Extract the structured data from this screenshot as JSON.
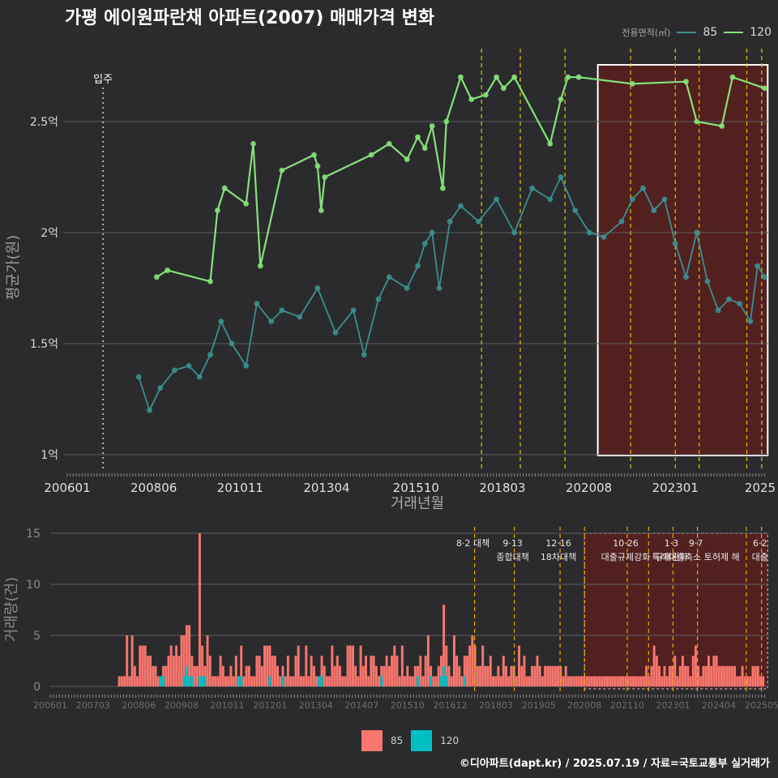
{
  "title": "가평 에이원파란채 아파트(2007) 매매가격 변화",
  "legend_top": {
    "title": "전용면적(㎡)",
    "items": [
      "85",
      "120"
    ]
  },
  "legend_bottom": {
    "items": [
      "85",
      "120"
    ]
  },
  "footer": "©디아파트(dapt.kr) / 2025.07.19 / 자료=국토교통부 실거래가",
  "colors": {
    "s85": "#3b8f8f",
    "s120": "#86e07a",
    "bar85": "#f8766d",
    "bar120": "#00bfc4",
    "policy": "#e6c200",
    "box": "#5a1f1f"
  },
  "chart_data": [
    {
      "type": "line",
      "ylabel": "평균가(원)",
      "xlabel": "거래년월",
      "x_ticks": [
        "200601",
        "200806",
        "201011",
        "201304",
        "201510",
        "201803",
        "202008",
        "202301",
        "2025"
      ],
      "y_ticks": [
        "1억",
        "1.5억",
        "2억",
        "2.5억"
      ],
      "ylim": [
        0.9,
        2.85
      ],
      "annotations": {
        "move_in": {
          "label": "입주",
          "date": "2007.01"
        }
      },
      "policy_lines": [
        "2017.08",
        "2018.09",
        "2019.12",
        "2021.10",
        "2023.01",
        "2023.09",
        "2025.01",
        "2025.06"
      ],
      "highlight_range": [
        "2020.11",
        "2025.08"
      ],
      "series": [
        {
          "name": "120",
          "points": [
            [
              2008.5,
              1.8
            ],
            [
              2008.8,
              1.83
            ],
            [
              2010.0,
              1.78
            ],
            [
              2010.2,
              2.1
            ],
            [
              2010.4,
              2.2
            ],
            [
              2011.0,
              2.13
            ],
            [
              2011.2,
              2.4
            ],
            [
              2011.4,
              1.85
            ],
            [
              2012.0,
              2.28
            ],
            [
              2012.9,
              2.35
            ],
            [
              2013.0,
              2.3
            ],
            [
              2013.1,
              2.1
            ],
            [
              2013.2,
              2.25
            ],
            [
              2014.5,
              2.35
            ],
            [
              2015.0,
              2.4
            ],
            [
              2015.5,
              2.33
            ],
            [
              2015.8,
              2.43
            ],
            [
              2016.0,
              2.38
            ],
            [
              2016.2,
              2.48
            ],
            [
              2016.5,
              2.2
            ],
            [
              2016.6,
              2.5
            ],
            [
              2017.0,
              2.7
            ],
            [
              2017.3,
              2.6
            ],
            [
              2017.7,
              2.62
            ],
            [
              2018.0,
              2.7
            ],
            [
              2018.2,
              2.65
            ],
            [
              2018.5,
              2.7
            ],
            [
              2019.5,
              2.4
            ],
            [
              2019.8,
              2.6
            ],
            [
              2020.0,
              2.7
            ],
            [
              2020.3,
              2.7
            ],
            [
              2021.8,
              2.67
            ],
            [
              2023.3,
              2.68
            ],
            [
              2023.6,
              2.5
            ],
            [
              2024.3,
              2.48
            ],
            [
              2024.6,
              2.7
            ],
            [
              2025.5,
              2.65
            ]
          ]
        },
        {
          "name": "85",
          "points": [
            [
              2008.0,
              1.35
            ],
            [
              2008.3,
              1.2
            ],
            [
              2008.6,
              1.3
            ],
            [
              2009.0,
              1.38
            ],
            [
              2009.4,
              1.4
            ],
            [
              2009.7,
              1.35
            ],
            [
              2010.0,
              1.45
            ],
            [
              2010.3,
              1.6
            ],
            [
              2010.6,
              1.5
            ],
            [
              2011.0,
              1.4
            ],
            [
              2011.3,
              1.68
            ],
            [
              2011.7,
              1.6
            ],
            [
              2012.0,
              1.65
            ],
            [
              2012.5,
              1.62
            ],
            [
              2013.0,
              1.75
            ],
            [
              2013.5,
              1.55
            ],
            [
              2014.0,
              1.65
            ],
            [
              2014.3,
              1.45
            ],
            [
              2014.7,
              1.7
            ],
            [
              2015.0,
              1.8
            ],
            [
              2015.5,
              1.75
            ],
            [
              2015.8,
              1.85
            ],
            [
              2016.0,
              1.95
            ],
            [
              2016.2,
              2.0
            ],
            [
              2016.4,
              1.75
            ],
            [
              2016.7,
              2.05
            ],
            [
              2017.0,
              2.12
            ],
            [
              2017.5,
              2.05
            ],
            [
              2018.0,
              2.15
            ],
            [
              2018.5,
              2.0
            ],
            [
              2019.0,
              2.2
            ],
            [
              2019.5,
              2.15
            ],
            [
              2019.8,
              2.25
            ],
            [
              2020.2,
              2.1
            ],
            [
              2020.6,
              2.0
            ],
            [
              2021.0,
              1.98
            ],
            [
              2021.5,
              2.05
            ],
            [
              2021.8,
              2.15
            ],
            [
              2022.1,
              2.2
            ],
            [
              2022.4,
              2.1
            ],
            [
              2022.7,
              2.15
            ],
            [
              2023.0,
              1.95
            ],
            [
              2023.3,
              1.8
            ],
            [
              2023.6,
              2.0
            ],
            [
              2023.9,
              1.78
            ],
            [
              2024.2,
              1.65
            ],
            [
              2024.5,
              1.7
            ],
            [
              2024.8,
              1.68
            ],
            [
              2025.1,
              1.6
            ],
            [
              2025.3,
              1.85
            ],
            [
              2025.5,
              1.8
            ]
          ]
        }
      ]
    },
    {
      "type": "bar",
      "ylabel": "거래량(건)",
      "y_ticks": [
        "0",
        "5",
        "10",
        "15"
      ],
      "ylim": [
        0,
        15.5
      ],
      "x_ticks": [
        "200601",
        "200703",
        "200806",
        "200908",
        "201011",
        "201201",
        "201304",
        "201407",
        "201510",
        "201612",
        "201803",
        "201905",
        "202008",
        "202110",
        "202301",
        "202404",
        "202505"
      ],
      "policy_lines": [
        "2017.08",
        "2018.09",
        "2019.12",
        "2020.08",
        "2021.10",
        "2022.05",
        "2023.01",
        "2023.09",
        "2025.01",
        "2025.06"
      ],
      "policy_labels": [
        {
          "date": "2017.08",
          "top": "8·2 대책",
          "bottom": ""
        },
        {
          "date": "2018.09",
          "top": "9·13",
          "bottom": "종합대책"
        },
        {
          "date": "2019.12",
          "top": "12·16",
          "bottom": "18차대책"
        },
        {
          "date": "2021.10",
          "top": "10·26",
          "bottom": "대출규제강화"
        },
        {
          "date": "2023.01",
          "top": "1·3",
          "bottom": "규제완화"
        },
        {
          "date": "2023.09",
          "top": "9·7",
          "bottom": "특례대출축소 토허제 해"
        },
        {
          "date": "2025.06",
          "top": "6·2",
          "bottom": "대출"
        }
      ],
      "highlight_range": [
        "2020.08",
        "2025.08"
      ],
      "series": [
        {
          "name": "85",
          "values": [
            1,
            1,
            1,
            5,
            1,
            5,
            2,
            1,
            4,
            4,
            4,
            3,
            3,
            2,
            2,
            1,
            1,
            2,
            2,
            3,
            4,
            3,
            4,
            3,
            5,
            5,
            6,
            6,
            3,
            2,
            2,
            15,
            4,
            2,
            5,
            3,
            1,
            1,
            1,
            3,
            2,
            1,
            1,
            2,
            1,
            3,
            1,
            4,
            1,
            2,
            2,
            1,
            1,
            3,
            3,
            2,
            4,
            4,
            4,
            3,
            3,
            2,
            1,
            2,
            1,
            3,
            1,
            1,
            3,
            4,
            1,
            1,
            4,
            1,
            3,
            2,
            1,
            1,
            3,
            2,
            1,
            1,
            4,
            2,
            3,
            2,
            1,
            1,
            4,
            4,
            4,
            2,
            1,
            4,
            2,
            3,
            1,
            3,
            3,
            2,
            1,
            2,
            2,
            3,
            2,
            3,
            4,
            3,
            1,
            4,
            1,
            2,
            1,
            1,
            2,
            2,
            3,
            1,
            3,
            5,
            2,
            1,
            1,
            2,
            3,
            8,
            4,
            2,
            1,
            5,
            3,
            2,
            1,
            3,
            3,
            4,
            5,
            4,
            2,
            2,
            4,
            2,
            2,
            3,
            1,
            1,
            2,
            1,
            3,
            2,
            1,
            2,
            2,
            1,
            4,
            2,
            3,
            1,
            1,
            2,
            2,
            3,
            2,
            1,
            2,
            2,
            2,
            2,
            2,
            2,
            2,
            1,
            2,
            1,
            1,
            1,
            1,
            1,
            1,
            1,
            1,
            1,
            1,
            1,
            1,
            1,
            1,
            1,
            1,
            1,
            1,
            1,
            1,
            1,
            1,
            1,
            1,
            1,
            1,
            1,
            1,
            1,
            1,
            2,
            1,
            2,
            4,
            3,
            2,
            1,
            2,
            1,
            2,
            2,
            3,
            1,
            2,
            3,
            2,
            2,
            1,
            3,
            4,
            2,
            1,
            2,
            2,
            3,
            2,
            3,
            3,
            2,
            2,
            2,
            2,
            2,
            2,
            2,
            1,
            1,
            2,
            1,
            1,
            1,
            2,
            2,
            2,
            1,
            1
          ]
        },
        {
          "name": "120",
          "values": [
            0,
            0,
            0,
            0,
            0,
            0,
            0,
            0,
            0,
            0,
            0,
            0,
            0,
            0,
            0,
            0,
            1,
            1,
            0,
            0,
            0,
            0,
            0,
            0,
            0,
            1,
            2,
            1,
            1,
            0,
            0,
            1,
            1,
            1,
            0,
            0,
            0,
            0,
            0,
            0,
            0,
            0,
            0,
            0,
            0,
            0,
            1,
            1,
            0,
            0,
            0,
            0,
            0,
            0,
            0,
            0,
            0,
            0,
            1,
            0,
            0,
            0,
            0,
            1,
            0,
            0,
            0,
            0,
            0,
            0,
            0,
            0,
            0,
            0,
            0,
            0,
            0,
            1,
            1,
            0,
            0,
            0,
            0,
            0,
            0,
            0,
            0,
            0,
            0,
            0,
            0,
            0,
            0,
            0,
            0,
            0,
            0,
            0,
            0,
            0,
            0,
            1,
            0,
            0,
            0,
            0,
            0,
            0,
            0,
            0,
            0,
            0,
            0,
            0,
            0,
            1,
            0,
            0,
            0,
            0,
            1,
            0,
            0,
            0,
            1,
            2,
            1,
            0,
            0,
            0,
            0,
            0,
            0,
            1,
            0,
            0,
            0,
            0,
            0,
            0,
            0,
            0,
            0,
            0,
            0,
            0,
            0,
            0,
            0,
            0,
            0,
            0,
            0,
            0,
            0,
            0,
            0,
            0,
            0,
            0,
            0,
            0,
            0,
            0,
            0,
            0,
            0,
            0,
            0,
            0,
            0,
            0,
            0,
            0,
            0,
            0,
            0,
            0,
            0,
            0,
            0,
            0,
            0,
            0,
            0,
            0,
            0,
            0,
            0,
            0,
            0,
            0,
            0,
            0,
            0,
            0,
            0,
            0,
            0,
            0,
            0,
            0,
            0,
            0,
            0,
            0,
            0,
            0,
            0,
            0,
            0,
            0,
            0,
            0,
            0,
            0,
            0,
            0,
            0,
            0,
            0,
            0,
            0,
            0,
            0,
            0,
            0,
            0,
            0,
            0,
            0,
            0,
            0,
            0,
            0,
            0,
            0,
            0,
            0,
            0,
            0,
            0,
            0,
            0,
            0,
            0,
            0,
            0,
            0
          ]
        }
      ]
    }
  ]
}
